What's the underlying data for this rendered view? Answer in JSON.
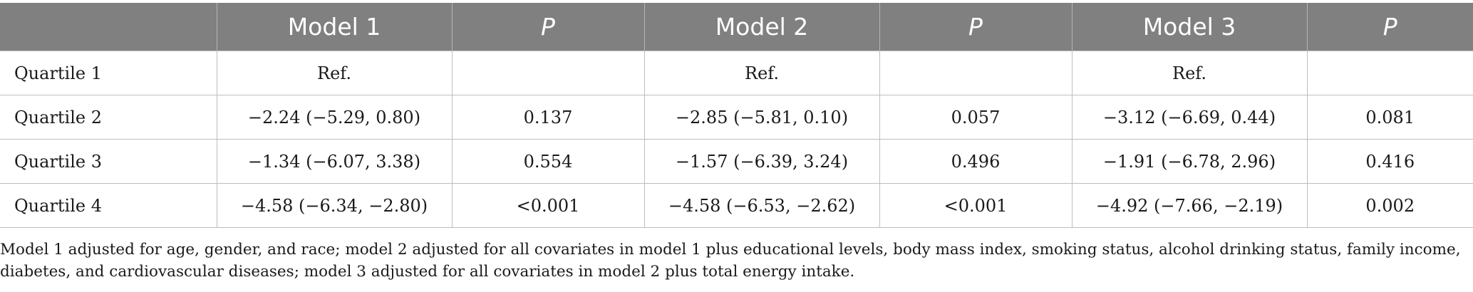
{
  "header": {
    "blank": "",
    "model1": "Model 1",
    "p1": "P",
    "model2": "Model 2",
    "p2": "P",
    "model3": "Model 3",
    "p3": "P"
  },
  "rows": [
    {
      "label": "Quartile 1",
      "m1": "Ref.",
      "p1": "",
      "m2": "Ref.",
      "p2": "",
      "m3": "Ref.",
      "p3": ""
    },
    {
      "label": "Quartile 2",
      "m1": "−2.24 (−5.29, 0.80)",
      "p1": "0.137",
      "m2": "−2.85 (−5.81, 0.10)",
      "p2": "0.057",
      "m3": "−3.12 (−6.69, 0.44)",
      "p3": "0.081"
    },
    {
      "label": "Quartile 3",
      "m1": "−1.34 (−6.07, 3.38)",
      "p1": "0.554",
      "m2": "−1.57 (−6.39, 3.24)",
      "p2": "0.496",
      "m3": "−1.91 (−6.78, 2.96)",
      "p3": "0.416"
    },
    {
      "label": "Quartile 4",
      "m1": "−4.58 (−6.34, −2.80)",
      "p1": "<0.001",
      "m2": "−4.58 (−6.53, −2.62)",
      "p2": "<0.001",
      "m3": "−4.92 (−7.66, −2.19)",
      "p3": "0.002"
    }
  ],
  "footnote": "Model 1 adjusted for age, gender, and race; model 2 adjusted for all covariates in model 1 plus educational levels, body mass index, smoking status, alcohol drinking status, family income, diabetes, and cardiovascular diseases; model 3 adjusted for all covariates in model 2 plus total energy intake."
}
